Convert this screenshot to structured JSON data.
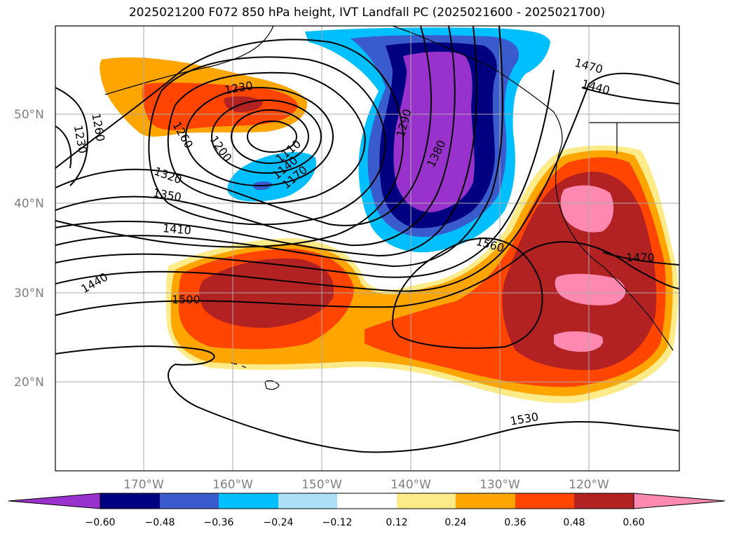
{
  "title": "2025021200 F072 850 hPa height, IVT Landfall PC (2025021600 - 2025021700)",
  "colors": {
    "neg_extreme": "#9932cc",
    "neg_060": "#000080",
    "neg_048": "#3a5bcc",
    "neg_036": "#00bfff",
    "neg_024": "#ade0f7",
    "neutral": "#ffffff",
    "pos_012": "#fdeb8a",
    "pos_024": "#ffa500",
    "pos_036": "#ff4500",
    "pos_048": "#b22222",
    "pos_060": "#ff88b0",
    "contour": "#000000",
    "grid": "#aaaaaa"
  },
  "lat_labels": [
    "50°N",
    "40°N",
    "30°N",
    "20°N"
  ],
  "lon_labels": [
    "170°W",
    "160°W",
    "150°W",
    "140°W",
    "130°W",
    "120°W"
  ],
  "contour_labels": [
    "1230",
    "1260",
    "1230",
    "1260",
    "1200",
    "1110",
    "1140",
    "1170",
    "1320",
    "1350",
    "1410",
    "1440",
    "1500",
    "1290",
    "1380",
    "1560",
    "1470",
    "1470",
    "1440",
    "1530"
  ],
  "colorbar": {
    "ticks": [
      "−0.60",
      "−0.48",
      "−0.36",
      "−0.24",
      "−0.12",
      "0.12",
      "0.24",
      "0.36",
      "0.48",
      "0.60"
    ]
  }
}
